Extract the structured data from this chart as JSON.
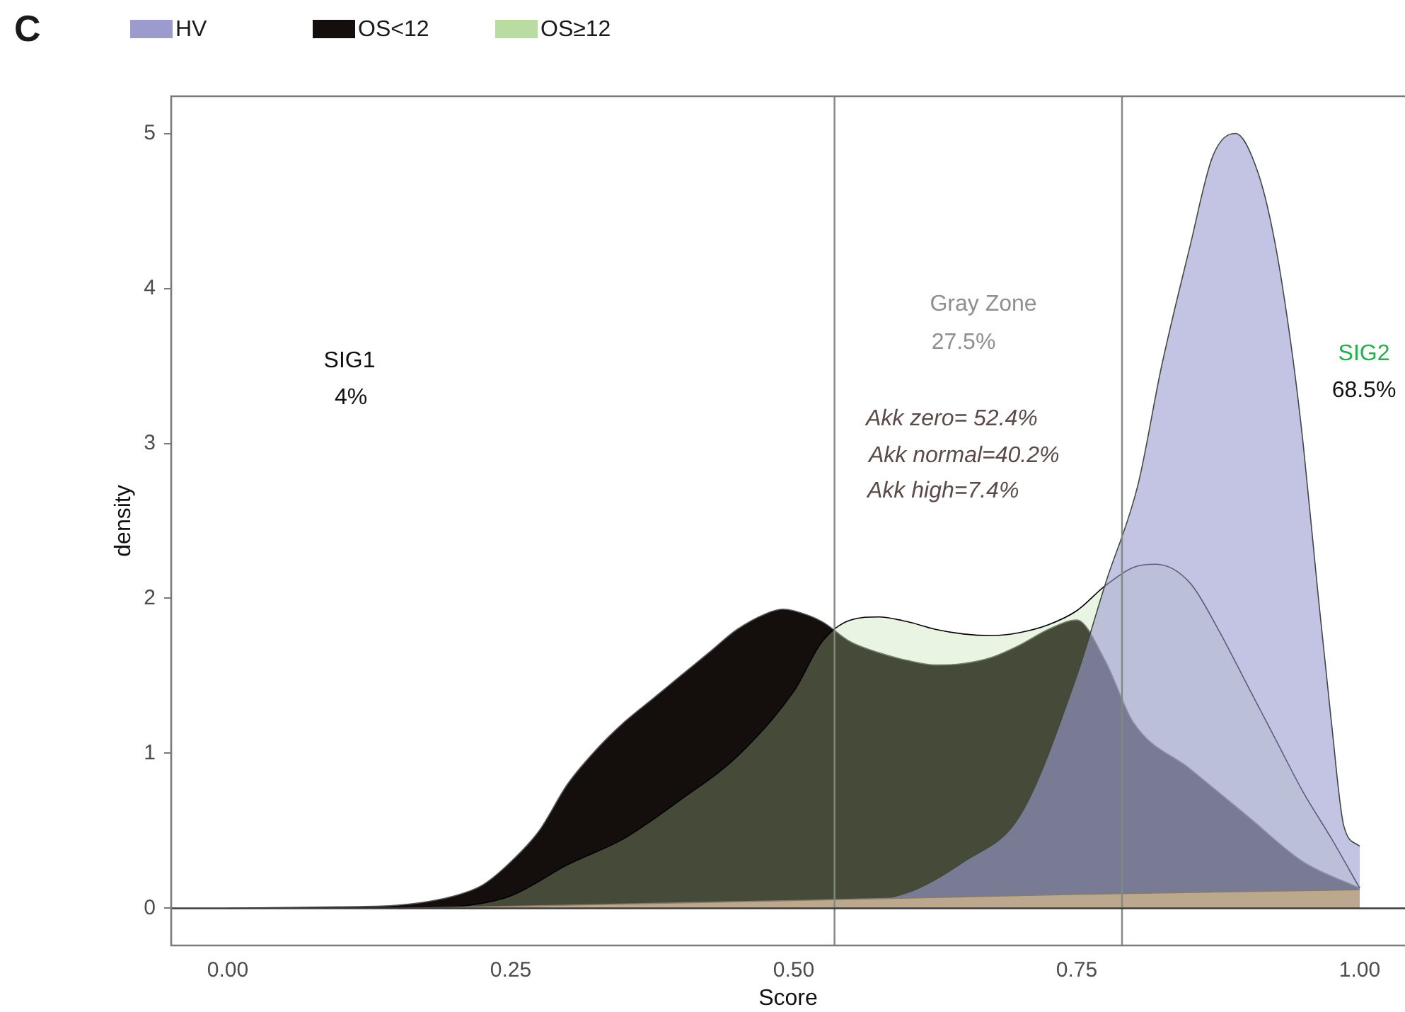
{
  "chart_data": {
    "type": "area",
    "xlabel": "Score",
    "ylabel": "density",
    "xlim": [
      -0.05,
      1.04
    ],
    "ylim": [
      -0.24,
      5.24
    ],
    "xticks": [
      {
        "value": 0,
        "label": "0.00"
      },
      {
        "value": 0.25,
        "label": "0.25"
      },
      {
        "value": 0.5,
        "label": "0.50"
      },
      {
        "value": 0.75,
        "label": "0.75"
      },
      {
        "value": 1,
        "label": "1.00"
      }
    ],
    "yticks": [
      0,
      1,
      2,
      3,
      4,
      5
    ],
    "legend": "top left",
    "grid": false,
    "series": [
      {
        "name": "OS<12",
        "color": "#140e0c",
        "x": [
          0,
          0.1,
          0.15,
          0.2,
          0.225,
          0.25,
          0.275,
          0.3,
          0.325,
          0.35,
          0.375,
          0.4,
          0.425,
          0.45,
          0.475,
          0.49,
          0.5,
          0.525,
          0.55,
          0.575,
          0.6,
          0.625,
          0.65,
          0.675,
          0.7,
          0.725,
          0.75,
          0.775,
          0.8,
          0.85,
          0.9,
          0.95,
          1
        ],
        "values": [
          0,
          0.01,
          0.02,
          0.08,
          0.15,
          0.3,
          0.5,
          0.8,
          1.02,
          1.2,
          1.35,
          1.5,
          1.65,
          1.8,
          1.9,
          1.93,
          1.92,
          1.85,
          1.72,
          1.65,
          1.6,
          1.57,
          1.58,
          1.62,
          1.7,
          1.8,
          1.86,
          1.6,
          1.2,
          0.9,
          0.6,
          0.3,
          0.13
        ]
      },
      {
        "name": "OS≥12",
        "color": "#b9dca0",
        "x": [
          0.15,
          0.2,
          0.25,
          0.3,
          0.35,
          0.4,
          0.45,
          0.5,
          0.525,
          0.55,
          0.575,
          0.6,
          0.625,
          0.65,
          0.675,
          0.7,
          0.725,
          0.75,
          0.775,
          0.8,
          0.82,
          0.85,
          0.875,
          0.9,
          0.925,
          0.95,
          0.975,
          1
        ],
        "values": [
          0,
          0.01,
          0.08,
          0.28,
          0.45,
          0.7,
          0.98,
          1.4,
          1.72,
          1.86,
          1.88,
          1.85,
          1.8,
          1.77,
          1.76,
          1.78,
          1.83,
          1.92,
          2.08,
          2.2,
          2.22,
          2.1,
          1.8,
          1.45,
          1.1,
          0.75,
          0.45,
          0.13
        ]
      },
      {
        "name": "HV",
        "color": "#9b9bd0",
        "x": [
          0.5,
          0.6,
          0.65,
          0.7,
          0.75,
          0.776,
          0.804,
          0.825,
          0.85,
          0.87,
          0.89,
          0.91,
          0.925,
          0.94,
          0.95,
          0.963,
          0.975,
          0.986,
          1
        ],
        "values": [
          0,
          0.1,
          0.3,
          0.6,
          1.5,
          2.11,
          2.73,
          3.5,
          4.27,
          4.85,
          5,
          4.75,
          4.3,
          3.6,
          3,
          2.04,
          1.2,
          0.53,
          0.4
        ]
      },
      {
        "color": "#bba88f",
        "x": [
          0.15,
          0.3,
          0.5,
          0.75,
          1
        ],
        "values": [
          0,
          0.02,
          0.05,
          0.09,
          0.12
        ]
      }
    ],
    "ref_lines": [
      {
        "axis": "x",
        "value": 0.536,
        "color": "#7f8a80"
      },
      {
        "axis": "x",
        "value": 0.79,
        "color": "#7f8a80"
      },
      {
        "axis": "y",
        "value": 0,
        "color": "#3a3a3a"
      }
    ],
    "annotations": [
      "C",
      "SIG1",
      "4%",
      "Gray Zone",
      "27.5%",
      "Akk zero= 52.4%",
      "Akk normal=40.2%",
      "Akk high=7.4%",
      "SIG2",
      "68.5%"
    ]
  }
}
